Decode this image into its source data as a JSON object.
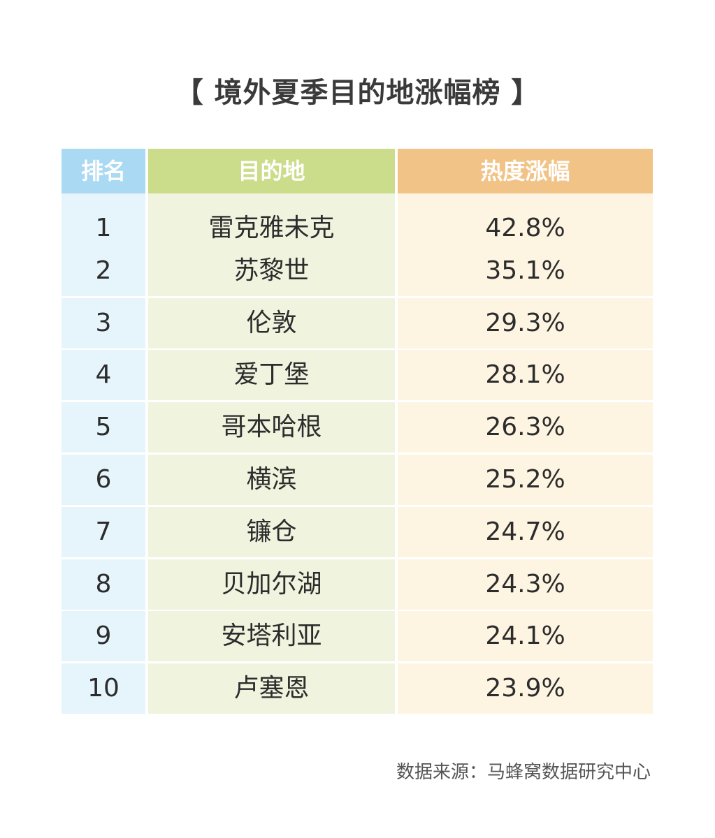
{
  "title": "【 境外夏季目的地涨幅榜 】",
  "chart_data": {
    "type": "table",
    "columns": [
      "排名",
      "目的地",
      "热度涨幅"
    ],
    "rows": [
      {
        "rank": "1",
        "destination": "雷克雅未克",
        "growth": "42.8%"
      },
      {
        "rank": "2",
        "destination": "苏黎世",
        "growth": "35.1%"
      },
      {
        "rank": "3",
        "destination": "伦敦",
        "growth": "29.3%"
      },
      {
        "rank": "4",
        "destination": "爱丁堡",
        "growth": "28.1%"
      },
      {
        "rank": "5",
        "destination": "哥本哈根",
        "growth": "26.3%"
      },
      {
        "rank": "6",
        "destination": "横滨",
        "growth": "25.2%"
      },
      {
        "rank": "7",
        "destination": "镰仓",
        "growth": "24.7%"
      },
      {
        "rank": "8",
        "destination": "贝加尔湖",
        "growth": "24.3%"
      },
      {
        "rank": "9",
        "destination": "安塔利亚",
        "growth": "24.1%"
      },
      {
        "rank": "10",
        "destination": "卢塞恩",
        "growth": "23.9%"
      }
    ]
  },
  "colors": {
    "rank_header": "#a9d9f3",
    "destination_header": "#cbdc8a",
    "growth_header": "#f2c387",
    "rank_cell": "#e6f4fb",
    "destination_cell": "#f0f4df",
    "growth_cell": "#fdf5e2"
  },
  "source": "数据来源：马蜂窝数据研究中心"
}
